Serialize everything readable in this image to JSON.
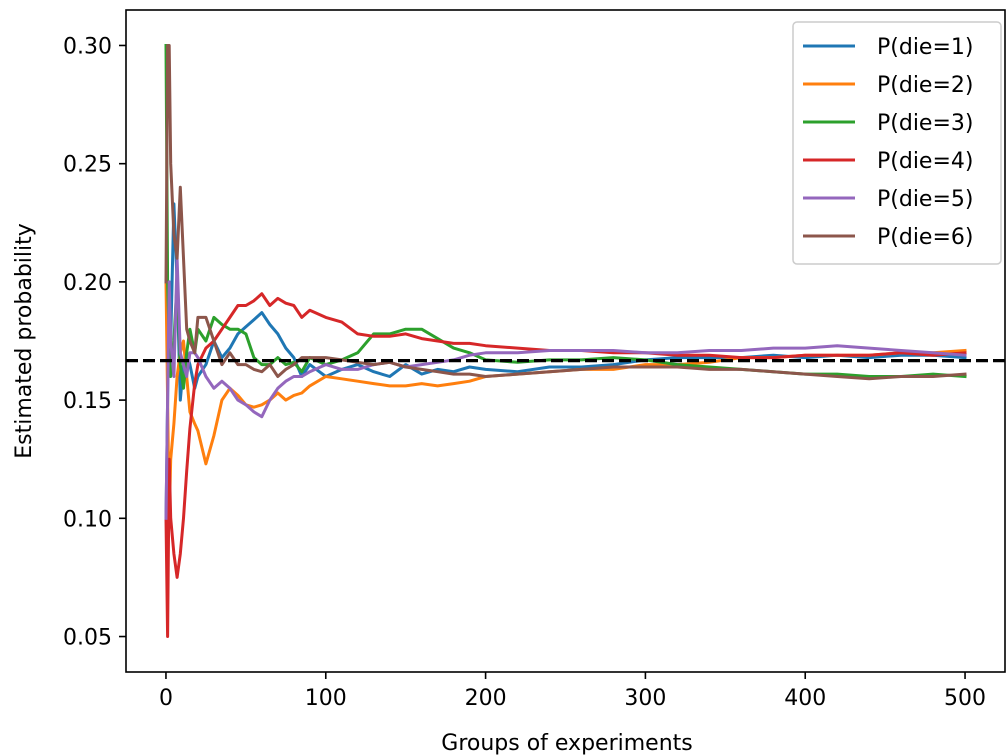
{
  "chart_data": {
    "type": "line",
    "title": "",
    "xlabel": "Groups of experiments",
    "ylabel": "Estimated probability",
    "xlim": [
      -25,
      525
    ],
    "ylim": [
      0.035,
      0.315
    ],
    "xticks": [
      0,
      100,
      200,
      300,
      400,
      500
    ],
    "xtick_labels": [
      "0",
      "100",
      "200",
      "300",
      "400",
      "500"
    ],
    "yticks": [
      0.05,
      0.1,
      0.15,
      0.2,
      0.25,
      0.3
    ],
    "ytick_labels": [
      "0.05",
      "0.10",
      "0.15",
      "0.20",
      "0.25",
      "0.30"
    ],
    "grid": false,
    "legend_position": "top-right",
    "reference_line": {
      "y": 0.1667,
      "style": "dashed",
      "color": "#000000"
    },
    "series": [
      {
        "name": "P(die=1)",
        "color": "#1f77b4",
        "x": [
          0,
          1,
          2,
          3,
          5,
          7,
          9,
          11,
          13,
          15,
          18,
          20,
          25,
          30,
          35,
          40,
          45,
          50,
          55,
          60,
          65,
          70,
          75,
          80,
          85,
          90,
          100,
          110,
          120,
          130,
          140,
          150,
          160,
          170,
          180,
          190,
          200,
          220,
          240,
          260,
          280,
          300,
          320,
          340,
          360,
          380,
          400,
          420,
          440,
          460,
          480,
          500
        ],
        "y": [
          0.1,
          0.15,
          0.2,
          0.175,
          0.233,
          0.2,
          0.15,
          0.165,
          0.17,
          0.165,
          0.155,
          0.16,
          0.165,
          0.175,
          0.168,
          0.172,
          0.178,
          0.181,
          0.184,
          0.187,
          0.182,
          0.178,
          0.172,
          0.168,
          0.16,
          0.165,
          0.16,
          0.163,
          0.165,
          0.162,
          0.16,
          0.165,
          0.161,
          0.163,
          0.162,
          0.164,
          0.163,
          0.162,
          0.164,
          0.164,
          0.165,
          0.167,
          0.168,
          0.168,
          0.168,
          0.169,
          0.168,
          0.169,
          0.168,
          0.169,
          0.169,
          0.168
        ]
      },
      {
        "name": "P(die=2)",
        "color": "#ff7f0e",
        "x": [
          0,
          1,
          2,
          3,
          5,
          7,
          9,
          11,
          13,
          15,
          18,
          20,
          25,
          30,
          35,
          40,
          45,
          50,
          55,
          60,
          65,
          70,
          75,
          80,
          85,
          90,
          100,
          110,
          120,
          130,
          140,
          150,
          160,
          170,
          180,
          190,
          200,
          220,
          240,
          260,
          280,
          300,
          320,
          340,
          360,
          380,
          400,
          420,
          440,
          460,
          480,
          500
        ],
        "y": [
          0.2,
          0.15,
          0.1,
          0.125,
          0.14,
          0.16,
          0.17,
          0.175,
          0.16,
          0.145,
          0.14,
          0.137,
          0.123,
          0.135,
          0.15,
          0.155,
          0.152,
          0.148,
          0.147,
          0.148,
          0.15,
          0.153,
          0.15,
          0.152,
          0.153,
          0.156,
          0.16,
          0.159,
          0.158,
          0.157,
          0.156,
          0.156,
          0.157,
          0.156,
          0.157,
          0.158,
          0.16,
          0.161,
          0.162,
          0.163,
          0.163,
          0.165,
          0.165,
          0.166,
          0.168,
          0.168,
          0.169,
          0.169,
          0.169,
          0.17,
          0.17,
          0.171
        ]
      },
      {
        "name": "P(die=3)",
        "color": "#2ca02c",
        "x": [
          0,
          1,
          2,
          3,
          5,
          7,
          9,
          11,
          13,
          15,
          18,
          20,
          25,
          30,
          35,
          40,
          45,
          50,
          55,
          60,
          65,
          70,
          75,
          80,
          85,
          90,
          100,
          110,
          120,
          130,
          140,
          150,
          160,
          170,
          180,
          190,
          200,
          220,
          240,
          260,
          280,
          300,
          320,
          340,
          360,
          380,
          400,
          420,
          440,
          460,
          480,
          500
        ],
        "y": [
          0.3,
          0.2,
          0.175,
          0.16,
          0.175,
          0.2,
          0.165,
          0.155,
          0.17,
          0.18,
          0.17,
          0.18,
          0.175,
          0.185,
          0.182,
          0.18,
          0.18,
          0.178,
          0.168,
          0.165,
          0.165,
          0.168,
          0.165,
          0.166,
          0.162,
          0.168,
          0.165,
          0.167,
          0.17,
          0.178,
          0.178,
          0.18,
          0.18,
          0.176,
          0.172,
          0.17,
          0.167,
          0.166,
          0.167,
          0.167,
          0.168,
          0.167,
          0.165,
          0.164,
          0.163,
          0.162,
          0.161,
          0.161,
          0.16,
          0.16,
          0.161,
          0.16
        ]
      },
      {
        "name": "P(die=4)",
        "color": "#d62728",
        "x": [
          0,
          1,
          2,
          3,
          5,
          7,
          9,
          11,
          13,
          15,
          18,
          20,
          25,
          30,
          35,
          40,
          45,
          50,
          55,
          60,
          65,
          70,
          75,
          80,
          85,
          90,
          100,
          110,
          120,
          130,
          140,
          150,
          160,
          170,
          180,
          190,
          200,
          220,
          240,
          260,
          280,
          300,
          320,
          340,
          360,
          380,
          400,
          420,
          440,
          460,
          480,
          500
        ],
        "y": [
          0.1,
          0.05,
          0.125,
          0.1,
          0.085,
          0.075,
          0.085,
          0.1,
          0.12,
          0.138,
          0.157,
          0.165,
          0.172,
          0.175,
          0.18,
          0.185,
          0.19,
          0.19,
          0.192,
          0.195,
          0.19,
          0.193,
          0.191,
          0.19,
          0.185,
          0.188,
          0.185,
          0.183,
          0.178,
          0.177,
          0.177,
          0.178,
          0.176,
          0.175,
          0.174,
          0.174,
          0.173,
          0.172,
          0.171,
          0.171,
          0.17,
          0.17,
          0.169,
          0.169,
          0.168,
          0.168,
          0.169,
          0.169,
          0.169,
          0.17,
          0.169,
          0.17
        ]
      },
      {
        "name": "P(die=5)",
        "color": "#9467bd",
        "x": [
          0,
          1,
          2,
          3,
          5,
          7,
          9,
          11,
          13,
          15,
          18,
          20,
          25,
          30,
          35,
          40,
          45,
          50,
          55,
          60,
          65,
          70,
          75,
          80,
          85,
          90,
          100,
          110,
          120,
          130,
          140,
          150,
          160,
          170,
          180,
          190,
          200,
          220,
          240,
          260,
          280,
          300,
          320,
          340,
          360,
          380,
          400,
          420,
          440,
          460,
          480,
          500
        ],
        "y": [
          0.1,
          0.15,
          0.2,
          0.175,
          0.16,
          0.21,
          0.17,
          0.165,
          0.16,
          0.17,
          0.17,
          0.168,
          0.16,
          0.155,
          0.158,
          0.155,
          0.15,
          0.148,
          0.145,
          0.143,
          0.15,
          0.155,
          0.158,
          0.16,
          0.16,
          0.162,
          0.165,
          0.163,
          0.163,
          0.165,
          0.166,
          0.164,
          0.165,
          0.166,
          0.167,
          0.169,
          0.17,
          0.17,
          0.171,
          0.171,
          0.171,
          0.17,
          0.17,
          0.171,
          0.171,
          0.172,
          0.172,
          0.173,
          0.172,
          0.171,
          0.17,
          0.169
        ]
      },
      {
        "name": "P(die=6)",
        "color": "#8c564b",
        "x": [
          0,
          1,
          2,
          3,
          5,
          7,
          9,
          11,
          13,
          15,
          18,
          20,
          25,
          30,
          35,
          40,
          45,
          50,
          55,
          60,
          65,
          70,
          75,
          80,
          85,
          90,
          100,
          110,
          120,
          130,
          140,
          150,
          160,
          170,
          180,
          190,
          200,
          220,
          240,
          260,
          280,
          300,
          320,
          340,
          360,
          380,
          400,
          420,
          440,
          460,
          480,
          500
        ],
        "y": [
          0.2,
          0.3,
          0.3,
          0.25,
          0.22,
          0.21,
          0.24,
          0.21,
          0.18,
          0.175,
          0.17,
          0.185,
          0.185,
          0.175,
          0.165,
          0.17,
          0.165,
          0.165,
          0.163,
          0.162,
          0.165,
          0.16,
          0.163,
          0.165,
          0.168,
          0.168,
          0.168,
          0.167,
          0.166,
          0.165,
          0.166,
          0.164,
          0.163,
          0.162,
          0.161,
          0.161,
          0.16,
          0.161,
          0.162,
          0.163,
          0.164,
          0.164,
          0.164,
          0.163,
          0.163,
          0.162,
          0.161,
          0.16,
          0.159,
          0.16,
          0.16,
          0.161
        ]
      }
    ]
  }
}
